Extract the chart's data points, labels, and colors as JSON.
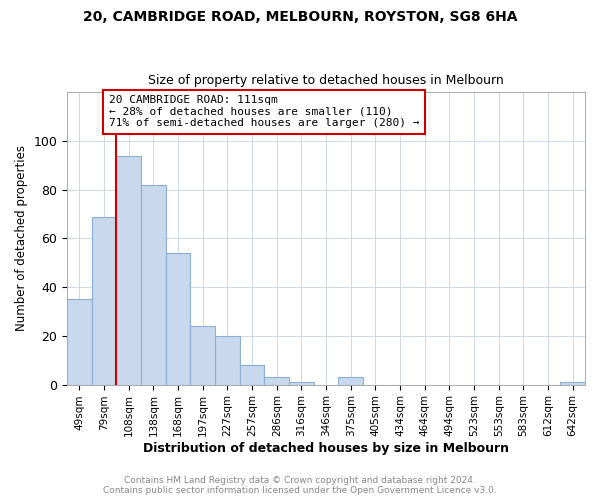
{
  "title_line1": "20, CAMBRIDGE ROAD, MELBOURN, ROYSTON, SG8 6HA",
  "title_line2": "Size of property relative to detached houses in Melbourn",
  "xlabel": "Distribution of detached houses by size in Melbourn",
  "ylabel": "Number of detached properties",
  "x_labels": [
    "49sqm",
    "79sqm",
    "108sqm",
    "138sqm",
    "168sqm",
    "197sqm",
    "227sqm",
    "257sqm",
    "286sqm",
    "316sqm",
    "346sqm",
    "375sqm",
    "405sqm",
    "434sqm",
    "464sqm",
    "494sqm",
    "523sqm",
    "553sqm",
    "583sqm",
    "612sqm",
    "642sqm"
  ],
  "values": [
    35,
    69,
    94,
    82,
    54,
    24,
    20,
    8,
    3,
    1,
    0,
    3,
    0,
    0,
    0,
    0,
    0,
    0,
    0,
    0,
    1
  ],
  "bar_color": "#c8d9ee",
  "bar_edge_color": "#8aaed4",
  "vline_color": "#cc0000",
  "annotation_line1": "20 CAMBRIDGE ROAD: 111sqm",
  "annotation_line2": "← 28% of detached houses are smaller (110)",
  "annotation_line3": "71% of semi-detached houses are larger (280) →",
  "annotation_box_color": "#cc0000",
  "ylim": [
    0,
    120
  ],
  "yticks": [
    0,
    20,
    40,
    60,
    80,
    100
  ],
  "footer_line1": "Contains HM Land Registry data © Crown copyright and database right 2024.",
  "footer_line2": "Contains public sector information licensed under the Open Government Licence v3.0.",
  "background_color": "#ffffff",
  "grid_color": "#ccd9e8"
}
